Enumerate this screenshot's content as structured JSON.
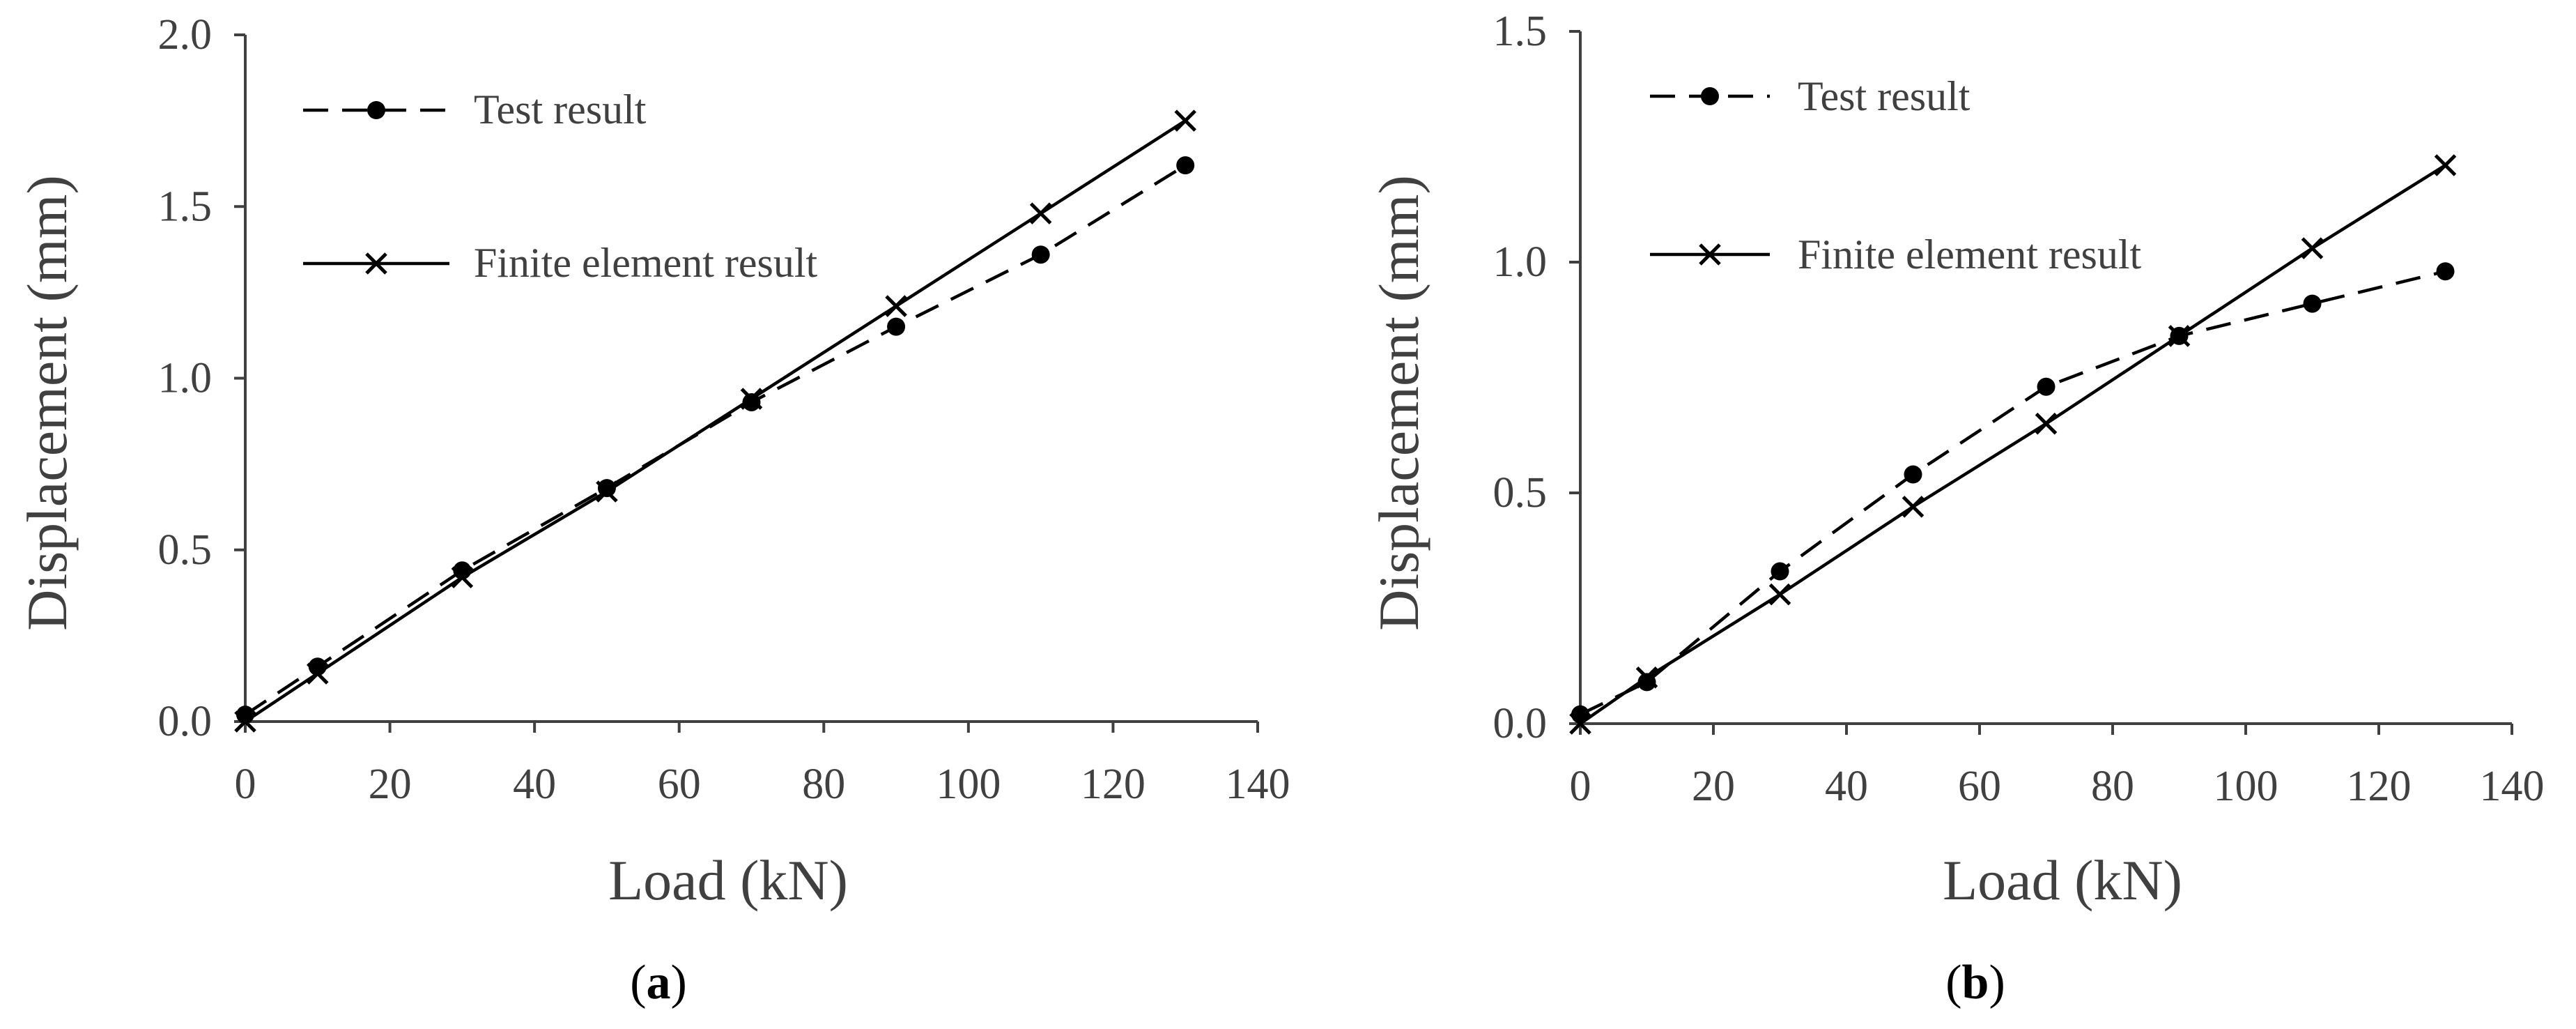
{
  "chart_data": [
    {
      "type": "line",
      "panel_label": "a",
      "xlabel": "Load (kN)",
      "ylabel": "Displacement (mm)",
      "xlim": [
        0,
        140
      ],
      "ylim": [
        0,
        2.0
      ],
      "x_ticks": [
        "0",
        "20",
        "40",
        "60",
        "80",
        "100",
        "120",
        "140"
      ],
      "y_ticks": [
        "0.0",
        "0.5",
        "1.0",
        "1.5",
        "2.0"
      ],
      "x_tick_values": [
        0,
        20,
        40,
        60,
        80,
        100,
        120,
        140
      ],
      "y_tick_values": [
        0,
        0.5,
        1.0,
        1.5,
        2.0
      ],
      "legend_placement": "top-left",
      "series": [
        {
          "name": "Test result",
          "line": "dashed",
          "marker": "circle",
          "x": [
            0,
            10,
            30,
            50,
            70,
            90,
            110,
            130
          ],
          "y": [
            0.02,
            0.16,
            0.44,
            0.68,
            0.93,
            1.15,
            1.36,
            1.62
          ]
        },
        {
          "name": "Finite element result",
          "line": "solid",
          "marker": "cross",
          "x": [
            0,
            10,
            30,
            50,
            70,
            90,
            110,
            130
          ],
          "y": [
            0.0,
            0.14,
            0.42,
            0.67,
            0.94,
            1.21,
            1.48,
            1.75
          ]
        }
      ]
    },
    {
      "type": "line",
      "panel_label": "b",
      "xlabel": "Load (kN)",
      "ylabel": "Displacement (mm)",
      "xlim": [
        0,
        140
      ],
      "ylim": [
        0,
        1.5
      ],
      "x_ticks": [
        "0",
        "20",
        "40",
        "60",
        "80",
        "100",
        "120",
        "140"
      ],
      "y_ticks": [
        "0.0",
        "0.5",
        "1.0",
        "1.5"
      ],
      "x_tick_values": [
        0,
        20,
        40,
        60,
        80,
        100,
        120,
        140
      ],
      "y_tick_values": [
        0,
        0.5,
        1.0,
        1.5
      ],
      "legend_placement": "top-left",
      "series": [
        {
          "name": "Test result",
          "line": "dashed",
          "marker": "circle",
          "x": [
            0,
            10,
            30,
            50,
            70,
            90,
            110,
            130
          ],
          "y": [
            0.02,
            0.09,
            0.33,
            0.54,
            0.73,
            0.84,
            0.91,
            0.98
          ]
        },
        {
          "name": "Finite element result",
          "line": "solid",
          "marker": "cross",
          "x": [
            0,
            10,
            30,
            50,
            70,
            90,
            110,
            130
          ],
          "y": [
            0.0,
            0.1,
            0.28,
            0.47,
            0.65,
            0.84,
            1.03,
            1.21
          ]
        }
      ]
    }
  ]
}
